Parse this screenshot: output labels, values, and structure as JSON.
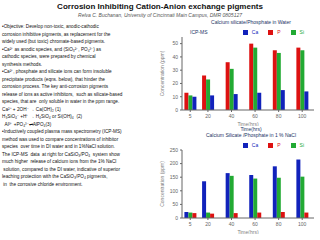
{
  "title": "Corrosion Inhibiting Cation-Anion exchange pigments",
  "subtitle": "Relva C. Buchanan, University of Cincinnati  Main Campus, DMR 0805127",
  "annotations": [
    "•Objective: Develop non-toxic, anodic-cathodic",
    "corrosion inhibitive pigments, as replacement for the",
    "widely used (but toxic) chromate-based pigments.",
    "•Ca²⁺ as anodic species, and (SiO₃²⁻, PO₄³⁻) as",
    "cathodic species, were prepared by chemical",
    "synthesis methods.",
    "•Ca²⁺, phosphate and silicate ions can form insoluble",
    "precipitate products (eqns. below), that hinder the",
    "corrosion process. The key anti-corrosion pigments",
    "release of ions as active inhibitors,  such as silicate-based",
    "species, that are  only soluble in water in the ppm range.",
    "Ca²⁺ + 2OH⁻ → Ca(OH)₂ (1)",
    "H₃SiO₄⁻ +H⁺ → H₄SiO₄ or Si(OH)₄  (2)",
    "  Al³⁺ +PO₄³⁻⇌AlPO₄(3)",
    "•Inductively coupled plasma mass spectrometry (ICP-MS)",
    "method was used to compare concentrations of inhibitor",
    "species  over time in DI water and in 1%NaCl solution.",
    "The ICP-MS  data  at right for CaSiO₃/PO₄  system show",
    "much higher  release of calcium ions from the 1% NaCl",
    " solution, compared to the DI water, indicative of superior",
    "leaching protection with the CaSiO₃/PO₄ pigments,",
    " in  the corrosive chloride environment."
  ],
  "chart_data": [
    {
      "type": "bar",
      "title": "Calcium silicate/Phosphate in  Water",
      "annotations": [
        "ICP-MS"
      ],
      "x_label": "Time(hrs)",
      "y_label": "Concentration (ppm)",
      "x": [
        5,
        20,
        40,
        60,
        80,
        100
      ],
      "series": [
        {
          "name": "P",
          "color": "#dd1111",
          "values": [
            13,
            26,
            36,
            50,
            45,
            47
          ]
        },
        {
          "name": "Si",
          "color": "#22aa33",
          "values": [
            11,
            23,
            31,
            47,
            43,
            45
          ]
        },
        {
          "name": "Ca",
          "color": "#1122bb",
          "values": [
            10,
            11,
            12,
            13,
            15,
            14
          ]
        }
      ],
      "xlim": [
        -2,
        110
      ],
      "xticks": [
        5,
        20,
        40,
        60,
        80,
        100
      ],
      "ylim": [
        0,
        55
      ],
      "yticks": [
        0,
        10,
        20,
        30,
        40,
        50
      ],
      "legend": "upper right",
      "grid": false
    },
    {
      "type": "bar",
      "title": "Calcium Silicate /Phosphate in 1 % NaCl",
      "annotations": [
        "Time(hrs)"
      ],
      "x_label": "Time(hrs)",
      "y_label": "Concentration (ppm)",
      "x": [
        5,
        20,
        40,
        60,
        80,
        100
      ],
      "series": [
        {
          "name": "Ca",
          "color": "#1122bb",
          "values": [
            22,
            135,
            165,
            158,
            190,
            215
          ]
        },
        {
          "name": "Si",
          "color": "#22aa33",
          "values": [
            20,
            20,
            155,
            145,
            148,
            152
          ]
        },
        {
          "name": "P",
          "color": "#dd1111",
          "values": [
            18,
            16,
            18,
            20,
            22,
            20
          ]
        }
      ],
      "xlim": [
        -2,
        110
      ],
      "xticks": [
        5,
        20,
        40,
        60,
        80,
        100
      ],
      "ylim": [
        0,
        250
      ],
      "yticks": [
        0,
        50,
        100,
        150,
        200,
        250
      ],
      "legend": "upper right",
      "grid": false
    }
  ]
}
